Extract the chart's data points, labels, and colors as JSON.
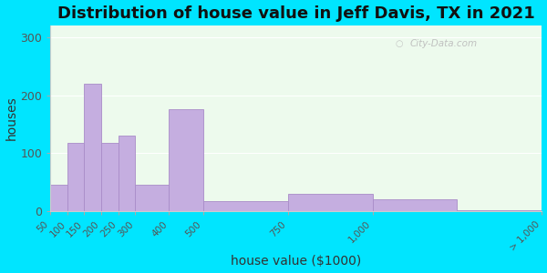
{
  "title": "Distribution of house value in Jeff Davis, TX in 2021",
  "xlabel": "house value ($1000)",
  "ylabel": "houses",
  "bar_values": [
    45,
    118,
    220,
    118,
    130,
    45,
    175,
    18,
    30,
    20,
    2
  ],
  "bin_edges": [
    50,
    100,
    150,
    200,
    250,
    300,
    400,
    500,
    750,
    1000,
    1250,
    1500
  ],
  "tick_positions": [
    50,
    100,
    150,
    200,
    250,
    300,
    400,
    500,
    750,
    1000,
    1500
  ],
  "tick_labels": [
    "50",
    "100",
    "150",
    "200",
    "250",
    "300",
    "400",
    "500",
    "750",
    "1,000",
    "> 1,000"
  ],
  "bar_color": "#c5aee0",
  "bar_edgecolor": "#a98cc8",
  "background_outer": "#00e5ff",
  "background_inner": "#edfaed",
  "ylim": [
    0,
    320
  ],
  "yticks": [
    0,
    100,
    200,
    300
  ],
  "title_fontsize": 13,
  "axis_label_fontsize": 10,
  "watermark": "City-Data.com"
}
